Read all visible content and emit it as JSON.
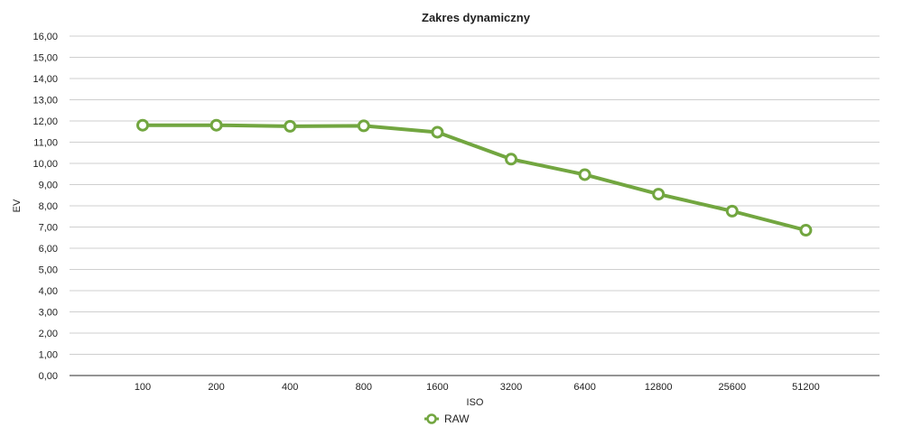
{
  "colors": {
    "series": "#72a640",
    "grid": "#cfcfcf",
    "axis": "#555555",
    "marker_fill": "#ffffff"
  },
  "chart_data": {
    "type": "line",
    "title": "Zakres dynamiczny",
    "xlabel": "ISO",
    "ylabel": "EV",
    "categories": [
      "100",
      "200",
      "400",
      "800",
      "1600",
      "3200",
      "6400",
      "12800",
      "25600",
      "51200"
    ],
    "ylim": [
      0,
      16
    ],
    "yticks": [
      "0,00",
      "1,00",
      "2,00",
      "3,00",
      "4,00",
      "5,00",
      "6,00",
      "7,00",
      "8,00",
      "9,00",
      "10,00",
      "11,00",
      "12,00",
      "13,00",
      "14,00",
      "15,00",
      "16,00"
    ],
    "grid": true,
    "legend_position": "bottom",
    "series": [
      {
        "name": "RAW",
        "values": [
          11.8,
          11.8,
          11.75,
          11.77,
          11.47,
          10.2,
          9.47,
          8.55,
          7.75,
          6.85
        ]
      }
    ]
  }
}
